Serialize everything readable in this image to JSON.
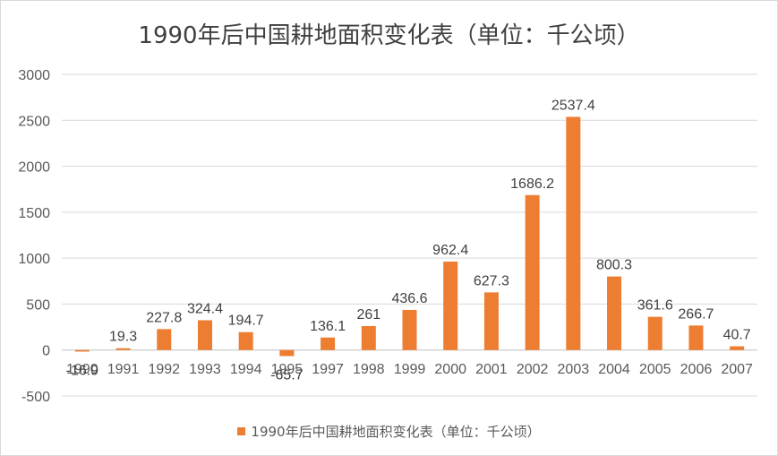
{
  "chart_data": {
    "type": "bar",
    "title": "1990年后中国耕地面积变化表（单位：千公顷）",
    "categories": [
      "1990",
      "1991",
      "1992",
      "1993",
      "1994",
      "1995",
      "1997",
      "1998",
      "1999",
      "2000",
      "2001",
      "2002",
      "2003",
      "2004",
      "2005",
      "2006",
      "2007"
    ],
    "series": [
      {
        "name": "1990年后中国耕地面积变化表（单位：千公顷）",
        "values": [
          -16.9,
          19.3,
          227.8,
          324.4,
          194.7,
          -65.7,
          136.1,
          261,
          436.6,
          962.4,
          627.3,
          1686.2,
          2537.4,
          800.3,
          361.6,
          266.7,
          40.7
        ],
        "color": "#ed7d31"
      }
    ],
    "ylim": [
      -500,
      3000
    ],
    "yticks": [
      -500,
      0,
      500,
      1000,
      1500,
      2000,
      2500,
      3000
    ],
    "grid": true,
    "legend_position": "bottom"
  }
}
